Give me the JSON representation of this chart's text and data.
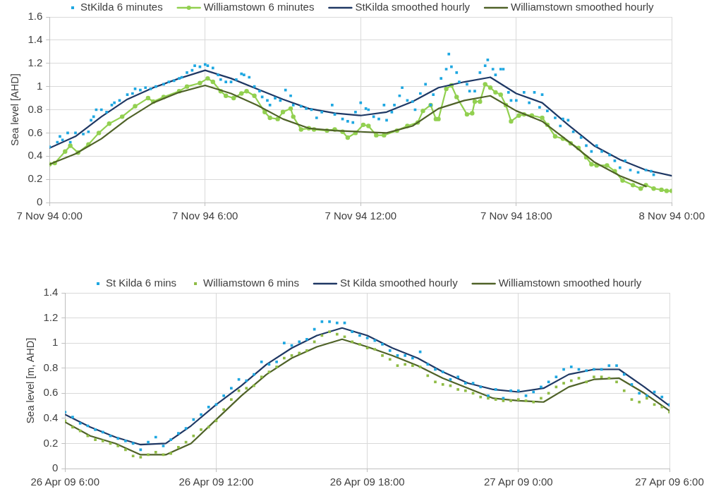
{
  "chart_data": [
    {
      "type": "line",
      "ylabel": "Sea level [AHD]",
      "xlim": [
        "1994-11-07T00:00",
        "1994-11-08T00:00"
      ],
      "xticks": [
        {
          "value": "1994-11-07T00:00",
          "label": "7 Nov 94 0:00"
        },
        {
          "value": "1994-11-07T06:00",
          "label": "7 Nov 94 6:00"
        },
        {
          "value": "1994-11-07T12:00",
          "label": "7 Nov 94 12:00"
        },
        {
          "value": "1994-11-07T18:00",
          "label": "7 Nov 94 18:00"
        },
        {
          "value": "1994-11-08T00:00",
          "label": "8 Nov 94 0:00"
        }
      ],
      "ylim": [
        0,
        1.6
      ],
      "yticks": [
        0,
        0.2,
        0.4,
        0.6,
        0.8,
        1,
        1.2,
        1.4,
        1.6
      ],
      "grid": true,
      "legend": "top",
      "series": [
        {
          "name": "StKilda 6 minutes",
          "type": "scatter",
          "marker": "square",
          "color": "#1ea7e1",
          "x": [
            "1994-11-07T00:00",
            "1994-11-07T00:18",
            "1994-11-07T00:24",
            "1994-11-07T00:30",
            "1994-11-07T00:42",
            "1994-11-07T00:48",
            "1994-11-07T01:00",
            "1994-11-07T01:18",
            "1994-11-07T01:30",
            "1994-11-07T01:36",
            "1994-11-07T01:42",
            "1994-11-07T01:48",
            "1994-11-07T02:00",
            "1994-11-07T02:12",
            "1994-11-07T02:24",
            "1994-11-07T02:30",
            "1994-11-07T02:42",
            "1994-11-07T03:00",
            "1994-11-07T03:12",
            "1994-11-07T03:18",
            "1994-11-07T03:30",
            "1994-11-07T03:42",
            "1994-11-07T03:54",
            "1994-11-07T04:06",
            "1994-11-07T04:24",
            "1994-11-07T04:36",
            "1994-11-07T04:48",
            "1994-11-07T05:00",
            "1994-11-07T05:06",
            "1994-11-07T05:18",
            "1994-11-07T05:30",
            "1994-11-07T05:36",
            "1994-11-07T05:48",
            "1994-11-07T06:00",
            "1994-11-07T06:06",
            "1994-11-07T06:18",
            "1994-11-07T06:30",
            "1994-11-07T06:36",
            "1994-11-07T06:48",
            "1994-11-07T07:00",
            "1994-11-07T07:12",
            "1994-11-07T07:24",
            "1994-11-07T07:30",
            "1994-11-07T07:42",
            "1994-11-07T07:54",
            "1994-11-07T08:06",
            "1994-11-07T08:12",
            "1994-11-07T08:24",
            "1994-11-07T08:30",
            "1994-11-07T08:42",
            "1994-11-07T08:54",
            "1994-11-07T09:06",
            "1994-11-07T09:18",
            "1994-11-07T09:24",
            "1994-11-07T09:42",
            "1994-11-07T09:54",
            "1994-11-07T10:06",
            "1994-11-07T10:18",
            "1994-11-07T10:30",
            "1994-11-07T10:54",
            "1994-11-07T11:00",
            "1994-11-07T11:18",
            "1994-11-07T11:30",
            "1994-11-07T11:42",
            "1994-11-07T11:48",
            "1994-11-07T12:00",
            "1994-11-07T12:12",
            "1994-11-07T12:18",
            "1994-11-07T12:30",
            "1994-11-07T12:42",
            "1994-11-07T12:54",
            "1994-11-07T13:00",
            "1994-11-07T13:12",
            "1994-11-07T13:18",
            "1994-11-07T13:30",
            "1994-11-07T13:36",
            "1994-11-07T13:48",
            "1994-11-07T14:00",
            "1994-11-07T14:06",
            "1994-11-07T14:18",
            "1994-11-07T14:30",
            "1994-11-07T14:42",
            "1994-11-07T14:48",
            "1994-11-07T15:06",
            "1994-11-07T15:18",
            "1994-11-07T15:24",
            "1994-11-07T15:30",
            "1994-11-07T15:42",
            "1994-11-07T15:48",
            "1994-11-07T16:06",
            "1994-11-07T16:12",
            "1994-11-07T16:24",
            "1994-11-07T16:36",
            "1994-11-07T16:48",
            "1994-11-07T16:54",
            "1994-11-07T17:06",
            "1994-11-07T17:12",
            "1994-11-07T17:24",
            "1994-11-07T17:30",
            "1994-11-07T17:42",
            "1994-11-07T17:48",
            "1994-11-07T18:00",
            "1994-11-07T18:18",
            "1994-11-07T18:30",
            "1994-11-07T18:42",
            "1994-11-07T18:54",
            "1994-11-07T19:00",
            "1994-11-07T19:12",
            "1994-11-07T19:30",
            "1994-11-07T19:42",
            "1994-11-07T19:48",
            "1994-11-07T20:00",
            "1994-11-07T20:12",
            "1994-11-07T20:30",
            "1994-11-07T20:42",
            "1994-11-07T20:54",
            "1994-11-07T21:06",
            "1994-11-07T21:18",
            "1994-11-07T21:36",
            "1994-11-07T21:48",
            "1994-11-07T22:00",
            "1994-11-07T22:12",
            "1994-11-07T22:24",
            "1994-11-07T22:42",
            "1994-11-07T23:00",
            "1994-11-07T23:12",
            "1994-11-07T23:18"
          ],
          "values": [
            0.48,
            0.52,
            0.57,
            0.54,
            0.6,
            0.52,
            0.6,
            0.59,
            0.61,
            0.71,
            0.74,
            0.8,
            0.8,
            0.78,
            0.84,
            0.86,
            0.88,
            0.93,
            0.94,
            0.98,
            0.97,
            0.99,
            0.98,
            1.0,
            1.02,
            1.04,
            1.05,
            1.07,
            1.08,
            1.12,
            1.14,
            1.18,
            1.17,
            1.19,
            1.18,
            1.16,
            1.1,
            1.06,
            1.04,
            1.04,
            1.06,
            1.11,
            1.1,
            1.08,
            1.0,
            0.96,
            0.91,
            0.88,
            0.84,
            0.9,
            0.88,
            0.97,
            0.92,
            0.84,
            0.83,
            0.81,
            0.8,
            0.73,
            0.78,
            0.84,
            0.76,
            0.72,
            0.7,
            0.69,
            0.78,
            0.86,
            0.81,
            0.8,
            0.74,
            0.72,
            0.84,
            0.71,
            0.78,
            0.84,
            0.92,
            0.99,
            0.88,
            0.87,
            0.8,
            0.94,
            1.02,
            0.84,
            0.93,
            1.07,
            1.15,
            1.28,
            1.17,
            1.12,
            1.04,
            1.02,
            0.96,
            0.96,
            1.12,
            1.18,
            1.23,
            1.15,
            1.1,
            1.15,
            1.15,
            0.95,
            0.88,
            0.88,
            0.95,
            0.86,
            0.95,
            0.82,
            0.93,
            0.79,
            0.73,
            0.66,
            0.72,
            0.71,
            0.61,
            0.56,
            0.49,
            0.44,
            0.49,
            0.44,
            0.41,
            0.36,
            0.3,
            0.36,
            0.28,
            0.26,
            0.28,
            0.27,
            0.24
          ]
        },
        {
          "name": "Williamstown 6 minutes",
          "marker": "circle",
          "color": "#92d050",
          "x": [
            "1994-11-07T00:00",
            "1994-11-07T00:12",
            "1994-11-07T00:36",
            "1994-11-07T00:48",
            "1994-11-07T01:06",
            "1994-11-07T01:30",
            "1994-11-07T01:54",
            "1994-11-07T02:18",
            "1994-11-07T02:48",
            "1994-11-07T03:18",
            "1994-11-07T03:48",
            "1994-11-07T04:00",
            "1994-11-07T04:24",
            "1994-11-07T05:00",
            "1994-11-07T05:18",
            "1994-11-07T05:48",
            "1994-11-07T06:06",
            "1994-11-07T06:18",
            "1994-11-07T06:36",
            "1994-11-07T06:48",
            "1994-11-07T07:06",
            "1994-11-07T07:24",
            "1994-11-07T07:36",
            "1994-11-07T07:54",
            "1994-11-07T08:18",
            "1994-11-07T08:30",
            "1994-11-07T08:48",
            "1994-11-07T09:00",
            "1994-11-07T09:18",
            "1994-11-07T09:24",
            "1994-11-07T09:42",
            "1994-11-07T10:00",
            "1994-11-07T10:12",
            "1994-11-07T10:42",
            "1994-11-07T11:00",
            "1994-11-07T11:18",
            "1994-11-07T11:30",
            "1994-11-07T11:48",
            "1994-11-07T12:06",
            "1994-11-07T12:18",
            "1994-11-07T12:36",
            "1994-11-07T12:54",
            "1994-11-07T13:24",
            "1994-11-07T13:48",
            "1994-11-07T14:12",
            "1994-11-07T14:24",
            "1994-11-07T14:42",
            "1994-11-07T14:54",
            "1994-11-07T15:00",
            "1994-11-07T15:18",
            "1994-11-07T15:30",
            "1994-11-07T15:42",
            "1994-11-07T16:06",
            "1994-11-07T16:18",
            "1994-11-07T16:24",
            "1994-11-07T16:36",
            "1994-11-07T16:48",
            "1994-11-07T17:00",
            "1994-11-07T17:12",
            "1994-11-07T17:24",
            "1994-11-07T17:36",
            "1994-11-07T17:48",
            "1994-11-07T18:06",
            "1994-11-07T18:18",
            "1994-11-07T18:36",
            "1994-11-07T19:00",
            "1994-11-07T19:12",
            "1994-11-07T19:30",
            "1994-11-07T19:48",
            "1994-11-07T20:06",
            "1994-11-07T20:24",
            "1994-11-07T20:42",
            "1994-11-07T20:54",
            "1994-11-07T21:06",
            "1994-11-07T21:30",
            "1994-11-07T21:48",
            "1994-11-07T22:06",
            "1994-11-07T22:30",
            "1994-11-07T22:48",
            "1994-11-07T23:00",
            "1994-11-07T23:18",
            "1994-11-07T23:36",
            "1994-11-07T23:48",
            "1994-11-08T00:00"
          ],
          "values": [
            0.33,
            0.34,
            0.44,
            0.49,
            0.43,
            0.5,
            0.6,
            0.68,
            0.74,
            0.83,
            0.9,
            0.87,
            0.91,
            0.96,
            1.0,
            1.03,
            1.07,
            1.04,
            0.96,
            0.92,
            0.9,
            0.94,
            0.96,
            0.92,
            0.78,
            0.73,
            0.72,
            0.78,
            0.81,
            0.74,
            0.63,
            0.64,
            0.63,
            0.62,
            0.63,
            0.61,
            0.56,
            0.6,
            0.67,
            0.66,
            0.58,
            0.58,
            0.62,
            0.66,
            0.69,
            0.79,
            0.84,
            0.72,
            0.72,
            0.98,
            1.01,
            0.91,
            0.76,
            0.77,
            0.87,
            0.87,
            1.02,
            0.99,
            0.95,
            0.93,
            0.84,
            0.7,
            0.75,
            0.76,
            0.75,
            0.73,
            0.67,
            0.57,
            0.55,
            0.51,
            0.47,
            0.39,
            0.33,
            0.32,
            0.32,
            0.27,
            0.19,
            0.15,
            0.12,
            0.15,
            0.12,
            0.11,
            0.1,
            0.1
          ]
        },
        {
          "name": "StKilda smoothed hourly",
          "color": "#1f3864",
          "x": [
            "1994-11-07T00:00",
            "1994-11-07T01:00",
            "1994-11-07T02:00",
            "1994-11-07T03:00",
            "1994-11-07T04:00",
            "1994-11-07T05:00",
            "1994-11-07T06:00",
            "1994-11-07T07:00",
            "1994-11-07T08:00",
            "1994-11-07T09:00",
            "1994-11-07T10:00",
            "1994-11-07T11:00",
            "1994-11-07T12:00",
            "1994-11-07T13:00",
            "1994-11-07T14:00",
            "1994-11-07T15:00",
            "1994-11-07T16:00",
            "1994-11-07T17:00",
            "1994-11-07T18:00",
            "1994-11-07T19:00",
            "1994-11-07T20:00",
            "1994-11-07T21:00",
            "1994-11-07T22:00",
            "1994-11-07T23:00",
            "1994-11-08T00:00"
          ],
          "values": [
            0.47,
            0.57,
            0.74,
            0.89,
            0.99,
            1.07,
            1.14,
            1.07,
            0.98,
            0.89,
            0.81,
            0.77,
            0.75,
            0.78,
            0.87,
            0.99,
            1.04,
            1.08,
            0.94,
            0.86,
            0.67,
            0.49,
            0.37,
            0.28,
            0.23
          ]
        },
        {
          "name": "Williamstown smoothed hourly",
          "color": "#4f6228",
          "x": [
            "1994-11-07T00:00",
            "1994-11-07T01:00",
            "1994-11-07T02:00",
            "1994-11-07T03:00",
            "1994-11-07T04:00",
            "1994-11-07T05:00",
            "1994-11-07T06:00",
            "1994-11-07T07:00",
            "1994-11-07T08:00",
            "1994-11-07T09:00",
            "1994-11-07T10:00",
            "1994-11-07T11:00",
            "1994-11-07T12:00",
            "1994-11-07T13:00",
            "1994-11-07T14:00",
            "1994-11-07T15:00",
            "1994-11-07T16:00",
            "1994-11-07T17:00",
            "1994-11-07T18:00",
            "1994-11-07T19:00",
            "1994-11-07T20:00",
            "1994-11-07T21:00",
            "1994-11-07T22:00",
            "1994-11-07T23:00"
          ],
          "values": [
            0.33,
            0.42,
            0.55,
            0.72,
            0.86,
            0.95,
            1.01,
            0.94,
            0.84,
            0.72,
            0.64,
            0.62,
            0.61,
            0.6,
            0.66,
            0.81,
            0.88,
            0.92,
            0.79,
            0.7,
            0.53,
            0.35,
            0.23,
            0.14
          ]
        }
      ]
    },
    {
      "type": "line",
      "ylabel": "Sea level [m, AHD]",
      "xlim": [
        "--04-26T06:00",
        "--04-27T06:00"
      ],
      "xticks": [
        {
          "value": "--04-26T06:00",
          "label": "26 Apr 09 6:00"
        },
        {
          "value": "--04-26T12:00",
          "label": "26 Apr 09 12:00"
        },
        {
          "value": "--04-26T18:00",
          "label": "26 Apr 09 18:00"
        },
        {
          "value": "--04-27T00:00",
          "label": "27 Apr 09 0:00"
        },
        {
          "value": "--04-27T06:00",
          "label": "27 Apr 09 6:00"
        }
      ],
      "ylim": [
        0,
        1.4
      ],
      "yticks": [
        0,
        0.2,
        0.4,
        0.6,
        0.8,
        1,
        1.2,
        1.4
      ],
      "grid": true,
      "legend": "top",
      "x": [
        "--04-26T06:00",
        "--04-26T06:18",
        "--04-26T06:36",
        "--04-26T06:54",
        "--04-26T07:12",
        "--04-26T07:30",
        "--04-26T07:48",
        "--04-26T08:06",
        "--04-26T08:24",
        "--04-26T08:42",
        "--04-26T09:00",
        "--04-26T09:18",
        "--04-26T09:36",
        "--04-26T09:54",
        "--04-26T10:12",
        "--04-26T10:30",
        "--04-26T10:48",
        "--04-26T11:06",
        "--04-26T11:24",
        "--04-26T11:42",
        "--04-26T12:00",
        "--04-26T12:18",
        "--04-26T12:36",
        "--04-26T12:54",
        "--04-26T13:12",
        "--04-26T13:30",
        "--04-26T13:48",
        "--04-26T14:06",
        "--04-26T14:24",
        "--04-26T14:42",
        "--04-26T15:00",
        "--04-26T15:18",
        "--04-26T15:36",
        "--04-26T15:54",
        "--04-26T16:12",
        "--04-26T16:30",
        "--04-26T16:48",
        "--04-26T17:06",
        "--04-26T17:24",
        "--04-26T17:42",
        "--04-26T18:00",
        "--04-26T18:18",
        "--04-26T18:36",
        "--04-26T18:54",
        "--04-26T19:12",
        "--04-26T19:30",
        "--04-26T19:48",
        "--04-26T20:06",
        "--04-26T20:24",
        "--04-26T20:42",
        "--04-26T21:00",
        "--04-26T21:18",
        "--04-26T21:36",
        "--04-26T21:54",
        "--04-26T22:12",
        "--04-26T22:30",
        "--04-26T22:48",
        "--04-26T23:06",
        "--04-26T23:24",
        "--04-26T23:42",
        "--04-27T00:00",
        "--04-27T00:18",
        "--04-27T00:36",
        "--04-27T00:54",
        "--04-27T01:12",
        "--04-27T01:30",
        "--04-27T01:48",
        "--04-27T02:06",
        "--04-27T02:24",
        "--04-27T02:42",
        "--04-27T03:00",
        "--04-27T03:18",
        "--04-27T03:36",
        "--04-27T03:54",
        "--04-27T04:12",
        "--04-27T04:30",
        "--04-27T04:48",
        "--04-27T05:06",
        "--04-27T05:24",
        "--04-27T05:42",
        "--04-27T06:00"
      ],
      "series": [
        {
          "name": "St Kilda 6 mins",
          "type": "scatter",
          "marker": "square",
          "color": "#1ea7e1",
          "values": [
            0.45,
            0.41,
            0.36,
            0.34,
            0.31,
            0.29,
            0.26,
            0.24,
            0.22,
            0.2,
            0.15,
            0.21,
            0.25,
            0.18,
            0.23,
            0.28,
            0.32,
            0.39,
            0.43,
            0.49,
            0.51,
            0.58,
            0.64,
            0.71,
            0.7,
            0.75,
            0.85,
            0.83,
            0.85,
            1.0,
            0.98,
            1.01,
            1.03,
            1.11,
            1.17,
            1.17,
            1.16,
            1.16,
            1.09,
            1.06,
            1.04,
            1.02,
            0.99,
            0.94,
            0.9,
            0.9,
            0.88,
            0.93,
            0.83,
            0.79,
            0.77,
            0.71,
            0.73,
            0.68,
            0.68,
            0.65,
            0.58,
            0.63,
            0.56,
            0.62,
            0.62,
            0.58,
            0.61,
            0.65,
            0.69,
            0.73,
            0.79,
            0.81,
            0.79,
            0.78,
            0.79,
            0.79,
            0.82,
            0.82,
            0.75,
            0.67,
            0.6,
            0.58,
            0.61,
            0.57,
            0.51
          ]
        },
        {
          "name": "Williamstown 6 mins",
          "type": "scatter",
          "marker": "square",
          "color": "#8fbc45",
          "values": [
            0.38,
            0.33,
            0.3,
            0.26,
            0.23,
            0.22,
            0.2,
            0.18,
            0.15,
            0.1,
            0.09,
            0.11,
            0.13,
            0.11,
            0.12,
            0.17,
            0.21,
            0.26,
            0.31,
            0.33,
            0.38,
            0.47,
            0.55,
            0.62,
            0.64,
            0.66,
            0.73,
            0.77,
            0.81,
            0.88,
            0.9,
            0.92,
            0.94,
            1.01,
            1.06,
            1.09,
            1.07,
            1.05,
            1.01,
            0.99,
            0.96,
            0.95,
            0.9,
            0.87,
            0.82,
            0.83,
            0.82,
            0.81,
            0.74,
            0.69,
            0.67,
            0.66,
            0.63,
            0.62,
            0.6,
            0.57,
            0.56,
            0.55,
            0.54,
            0.54,
            0.55,
            0.54,
            0.53,
            0.56,
            0.6,
            0.65,
            0.68,
            0.7,
            0.72,
            0.69,
            0.73,
            0.73,
            0.72,
            0.69,
            0.62,
            0.55,
            0.53,
            0.56,
            0.51,
            0.49,
            0.45
          ]
        },
        {
          "name": "St Kilda smoothed hourly",
          "color": "#1f3864",
          "x": [
            "--04-26T06:00",
            "--04-26T07:00",
            "--04-26T08:00",
            "--04-26T09:00",
            "--04-26T10:00",
            "--04-26T11:00",
            "--04-26T12:00",
            "--04-26T13:00",
            "--04-26T14:00",
            "--04-26T15:00",
            "--04-26T16:00",
            "--04-26T17:00",
            "--04-26T18:00",
            "--04-26T19:00",
            "--04-26T20:00",
            "--04-26T21:00",
            "--04-26T22:00",
            "--04-26T23:00",
            "--04-27T00:00",
            "--04-27T01:00",
            "--04-27T02:00",
            "--04-27T03:00",
            "--04-27T04:00",
            "--04-27T05:00",
            "--04-27T06:00"
          ],
          "values": [
            0.43,
            0.33,
            0.25,
            0.19,
            0.2,
            0.34,
            0.51,
            0.66,
            0.83,
            0.96,
            1.06,
            1.12,
            1.06,
            0.96,
            0.88,
            0.77,
            0.68,
            0.63,
            0.61,
            0.64,
            0.75,
            0.79,
            0.79,
            0.65,
            0.5
          ]
        },
        {
          "name": "Williamstown smoothed hourly",
          "color": "#4f6228",
          "x": [
            "--04-26T06:00",
            "--04-26T07:00",
            "--04-26T08:00",
            "--04-26T09:00",
            "--04-26T10:00",
            "--04-26T11:00",
            "--04-26T12:00",
            "--04-26T13:00",
            "--04-26T14:00",
            "--04-26T15:00",
            "--04-26T16:00",
            "--04-26T17:00",
            "--04-26T18:00",
            "--04-26T19:00",
            "--04-26T20:00",
            "--04-26T21:00",
            "--04-26T22:00",
            "--04-26T23:00",
            "--04-27T00:00",
            "--04-27T01:00",
            "--04-27T02:00",
            "--04-27T03:00",
            "--04-27T04:00",
            "--04-27T05:00",
            "--04-27T06:00"
          ],
          "values": [
            0.37,
            0.26,
            0.2,
            0.11,
            0.11,
            0.2,
            0.39,
            0.58,
            0.75,
            0.88,
            0.97,
            1.03,
            0.97,
            0.9,
            0.82,
            0.72,
            0.64,
            0.56,
            0.54,
            0.53,
            0.65,
            0.71,
            0.72,
            0.6,
            0.46
          ]
        }
      ]
    }
  ]
}
